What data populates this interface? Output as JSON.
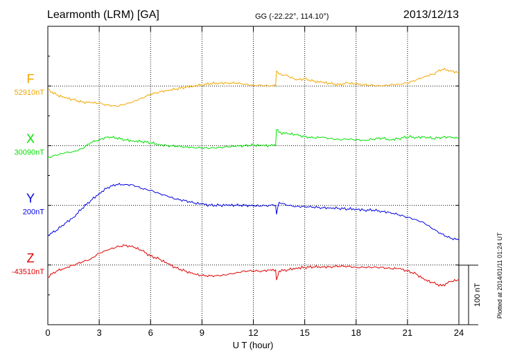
{
  "header": {
    "station": "Learmonth (LRM)  [GA]",
    "coords": "GG (-22.22°, 114.10°)",
    "date": "2013/12/13"
  },
  "footer": {
    "plotted": "Plotted at 2014/01/11 01:24 UT",
    "scale_label": "100 nT"
  },
  "chart_data": {
    "type": "line",
    "xlabel": "U T (hour)",
    "xlim": [
      0,
      24
    ],
    "x_ticks": [
      "0",
      "3",
      "6",
      "9",
      "12",
      "15",
      "18",
      "21",
      "24"
    ],
    "units_per_row": 100,
    "grid": true,
    "series": [
      {
        "name": "F",
        "baseline_label": "52910nT",
        "color": "#f0a800",
        "row": 1,
        "points": [
          [
            0,
            -6
          ],
          [
            0.5,
            -15
          ],
          [
            1,
            -20
          ],
          [
            1.5,
            -23
          ],
          [
            2,
            -27
          ],
          [
            2.5,
            -28
          ],
          [
            3,
            -29
          ],
          [
            3.5,
            -32
          ],
          [
            4,
            -34
          ],
          [
            4.5,
            -31
          ],
          [
            5,
            -26
          ],
          [
            5.5,
            -20
          ],
          [
            6,
            -14
          ],
          [
            6.5,
            -10
          ],
          [
            7,
            -7
          ],
          [
            7.5,
            -5
          ],
          [
            8,
            -2
          ],
          [
            8.5,
            0
          ],
          [
            9,
            2
          ],
          [
            9.5,
            4
          ],
          [
            10,
            5
          ],
          [
            10.5,
            5
          ],
          [
            11,
            5
          ],
          [
            11.5,
            3
          ],
          [
            12,
            1
          ],
          [
            12.5,
            1
          ],
          [
            13,
            0
          ],
          [
            13.3,
            0
          ],
          [
            13.35,
            25
          ],
          [
            13.5,
            20
          ],
          [
            14,
            17
          ],
          [
            14.5,
            10
          ],
          [
            15,
            12
          ],
          [
            15.5,
            8
          ],
          [
            16,
            6
          ],
          [
            16.5,
            4
          ],
          [
            17,
            2
          ],
          [
            17.5,
            5
          ],
          [
            18,
            3
          ],
          [
            18.5,
            2
          ],
          [
            19,
            1
          ],
          [
            19.5,
            0
          ],
          [
            20,
            2
          ],
          [
            20.5,
            3
          ],
          [
            21,
            5
          ],
          [
            21.5,
            10
          ],
          [
            22,
            16
          ],
          [
            22.5,
            20
          ],
          [
            23,
            28
          ],
          [
            23.5,
            26
          ],
          [
            24,
            22
          ]
        ]
      },
      {
        "name": "X",
        "baseline_label": "30090nT",
        "color": "#00e000",
        "row": 2,
        "points": [
          [
            0,
            -20
          ],
          [
            0.5,
            -16
          ],
          [
            1,
            -12
          ],
          [
            1.5,
            -10
          ],
          [
            2,
            -5
          ],
          [
            2.5,
            5
          ],
          [
            3,
            10
          ],
          [
            3.5,
            15
          ],
          [
            4,
            13
          ],
          [
            4.5,
            10
          ],
          [
            5,
            8
          ],
          [
            5.5,
            7
          ],
          [
            6,
            5
          ],
          [
            6.5,
            2
          ],
          [
            7,
            0
          ],
          [
            7.5,
            -1
          ],
          [
            8,
            -2
          ],
          [
            8.5,
            -3
          ],
          [
            9,
            -4
          ],
          [
            9.5,
            -4
          ],
          [
            10,
            -3
          ],
          [
            10.5,
            -2
          ],
          [
            11,
            -1
          ],
          [
            11.5,
            0
          ],
          [
            12,
            1
          ],
          [
            12.5,
            0
          ],
          [
            13,
            0
          ],
          [
            13.3,
            0
          ],
          [
            13.35,
            27
          ],
          [
            13.5,
            22
          ],
          [
            14,
            20
          ],
          [
            14.5,
            18
          ],
          [
            15,
            15
          ],
          [
            15.5,
            13
          ],
          [
            16,
            14
          ],
          [
            16.5,
            12
          ],
          [
            17,
            10
          ],
          [
            17.5,
            11
          ],
          [
            18,
            10
          ],
          [
            18.5,
            9
          ],
          [
            19,
            11
          ],
          [
            19.5,
            13
          ],
          [
            20,
            10
          ],
          [
            20.5,
            12
          ],
          [
            21,
            15
          ],
          [
            21.5,
            14
          ],
          [
            22,
            15
          ],
          [
            22.5,
            12
          ],
          [
            23,
            14
          ],
          [
            23.5,
            15
          ],
          [
            24,
            12
          ]
        ]
      },
      {
        "name": "Y",
        "baseline_label": "200nT",
        "color": "#0000e0",
        "row": 3,
        "points": [
          [
            0,
            -50
          ],
          [
            0.5,
            -42
          ],
          [
            1,
            -30
          ],
          [
            1.5,
            -20
          ],
          [
            2,
            -5
          ],
          [
            2.5,
            8
          ],
          [
            3,
            20
          ],
          [
            3.5,
            30
          ],
          [
            4,
            35
          ],
          [
            4.5,
            35
          ],
          [
            5,
            34
          ],
          [
            5.5,
            28
          ],
          [
            6,
            25
          ],
          [
            6.5,
            20
          ],
          [
            7,
            15
          ],
          [
            7.5,
            10
          ],
          [
            8,
            8
          ],
          [
            8.5,
            4
          ],
          [
            9,
            2
          ],
          [
            9.5,
            0
          ],
          [
            10,
            0
          ],
          [
            10.5,
            0
          ],
          [
            11,
            0
          ],
          [
            11.5,
            0
          ],
          [
            12,
            -1
          ],
          [
            12.5,
            -1
          ],
          [
            13,
            0
          ],
          [
            13.3,
            0
          ],
          [
            13.35,
            -15
          ],
          [
            13.5,
            5
          ],
          [
            14,
            0
          ],
          [
            14.5,
            -2
          ],
          [
            15,
            -2
          ],
          [
            15.5,
            -3
          ],
          [
            16,
            -4
          ],
          [
            16.5,
            -4
          ],
          [
            17,
            -5
          ],
          [
            17.5,
            -6
          ],
          [
            18,
            -6
          ],
          [
            18.5,
            -8
          ],
          [
            19,
            -8
          ],
          [
            19.5,
            -10
          ],
          [
            20,
            -12
          ],
          [
            20.5,
            -16
          ],
          [
            21,
            -20
          ],
          [
            21.5,
            -24
          ],
          [
            22,
            -30
          ],
          [
            22.5,
            -40
          ],
          [
            23,
            -48
          ],
          [
            23.5,
            -55
          ],
          [
            24,
            -58
          ]
        ]
      },
      {
        "name": "Z",
        "baseline_label": "-43510nT",
        "color": "#e00000",
        "row": 4,
        "points": [
          [
            0,
            -20
          ],
          [
            0.5,
            -10
          ],
          [
            1,
            -5
          ],
          [
            1.5,
            0
          ],
          [
            2,
            5
          ],
          [
            2.5,
            10
          ],
          [
            3,
            20
          ],
          [
            3.5,
            25
          ],
          [
            4,
            30
          ],
          [
            4.5,
            33
          ],
          [
            5,
            30
          ],
          [
            5.5,
            24
          ],
          [
            6,
            15
          ],
          [
            6.5,
            10
          ],
          [
            7,
            2
          ],
          [
            7.5,
            -5
          ],
          [
            8,
            -10
          ],
          [
            8.5,
            -15
          ],
          [
            9,
            -18
          ],
          [
            9.5,
            -18
          ],
          [
            10,
            -18
          ],
          [
            10.5,
            -16
          ],
          [
            11,
            -13
          ],
          [
            11.5,
            -10
          ],
          [
            12,
            -10
          ],
          [
            12.5,
            -10
          ],
          [
            13,
            -8
          ],
          [
            13.3,
            -8
          ],
          [
            13.35,
            -25
          ],
          [
            13.5,
            -10
          ],
          [
            14,
            -8
          ],
          [
            14.5,
            -5
          ],
          [
            15,
            -4
          ],
          [
            15.5,
            -3
          ],
          [
            16,
            -3
          ],
          [
            16.5,
            -3
          ],
          [
            17,
            -2
          ],
          [
            17.5,
            -2
          ],
          [
            18,
            -4
          ],
          [
            18.5,
            -4
          ],
          [
            19,
            -4
          ],
          [
            19.5,
            -4
          ],
          [
            20,
            -6
          ],
          [
            20.5,
            -6
          ],
          [
            21,
            -10
          ],
          [
            21.5,
            -15
          ],
          [
            22,
            -25
          ],
          [
            22.5,
            -30
          ],
          [
            23,
            -35
          ],
          [
            23.5,
            -28
          ],
          [
            24,
            -25
          ]
        ]
      }
    ]
  }
}
